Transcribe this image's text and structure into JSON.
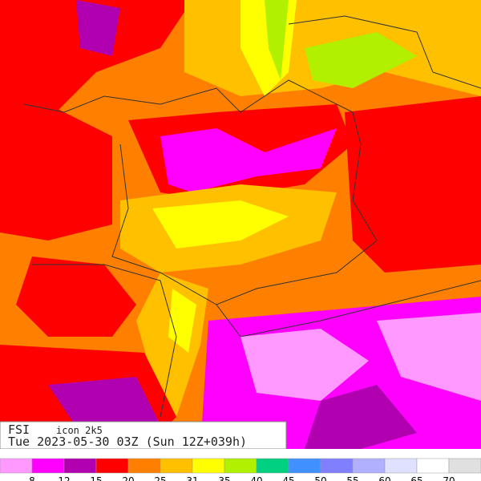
{
  "header": {
    "title": "FSI",
    "model": "icon 2k5",
    "valid_time": "Tue 2023-05-30 03Z (Sun 12Z+039h)"
  },
  "legend": {
    "colors": [
      "#ff99ff",
      "#ff00ff",
      "#b000b0",
      "#ff0000",
      "#ff8000",
      "#ffc000",
      "#ffff00",
      "#b0f000",
      "#00d080",
      "#4090ff",
      "#8080ff",
      "#b0b0ff",
      "#e0e0ff",
      "#ffffff",
      "#e0e0e0"
    ],
    "labels": [
      8,
      12,
      15,
      20,
      25,
      31,
      35,
      40,
      45,
      50,
      55,
      60,
      65,
      70
    ]
  }
}
